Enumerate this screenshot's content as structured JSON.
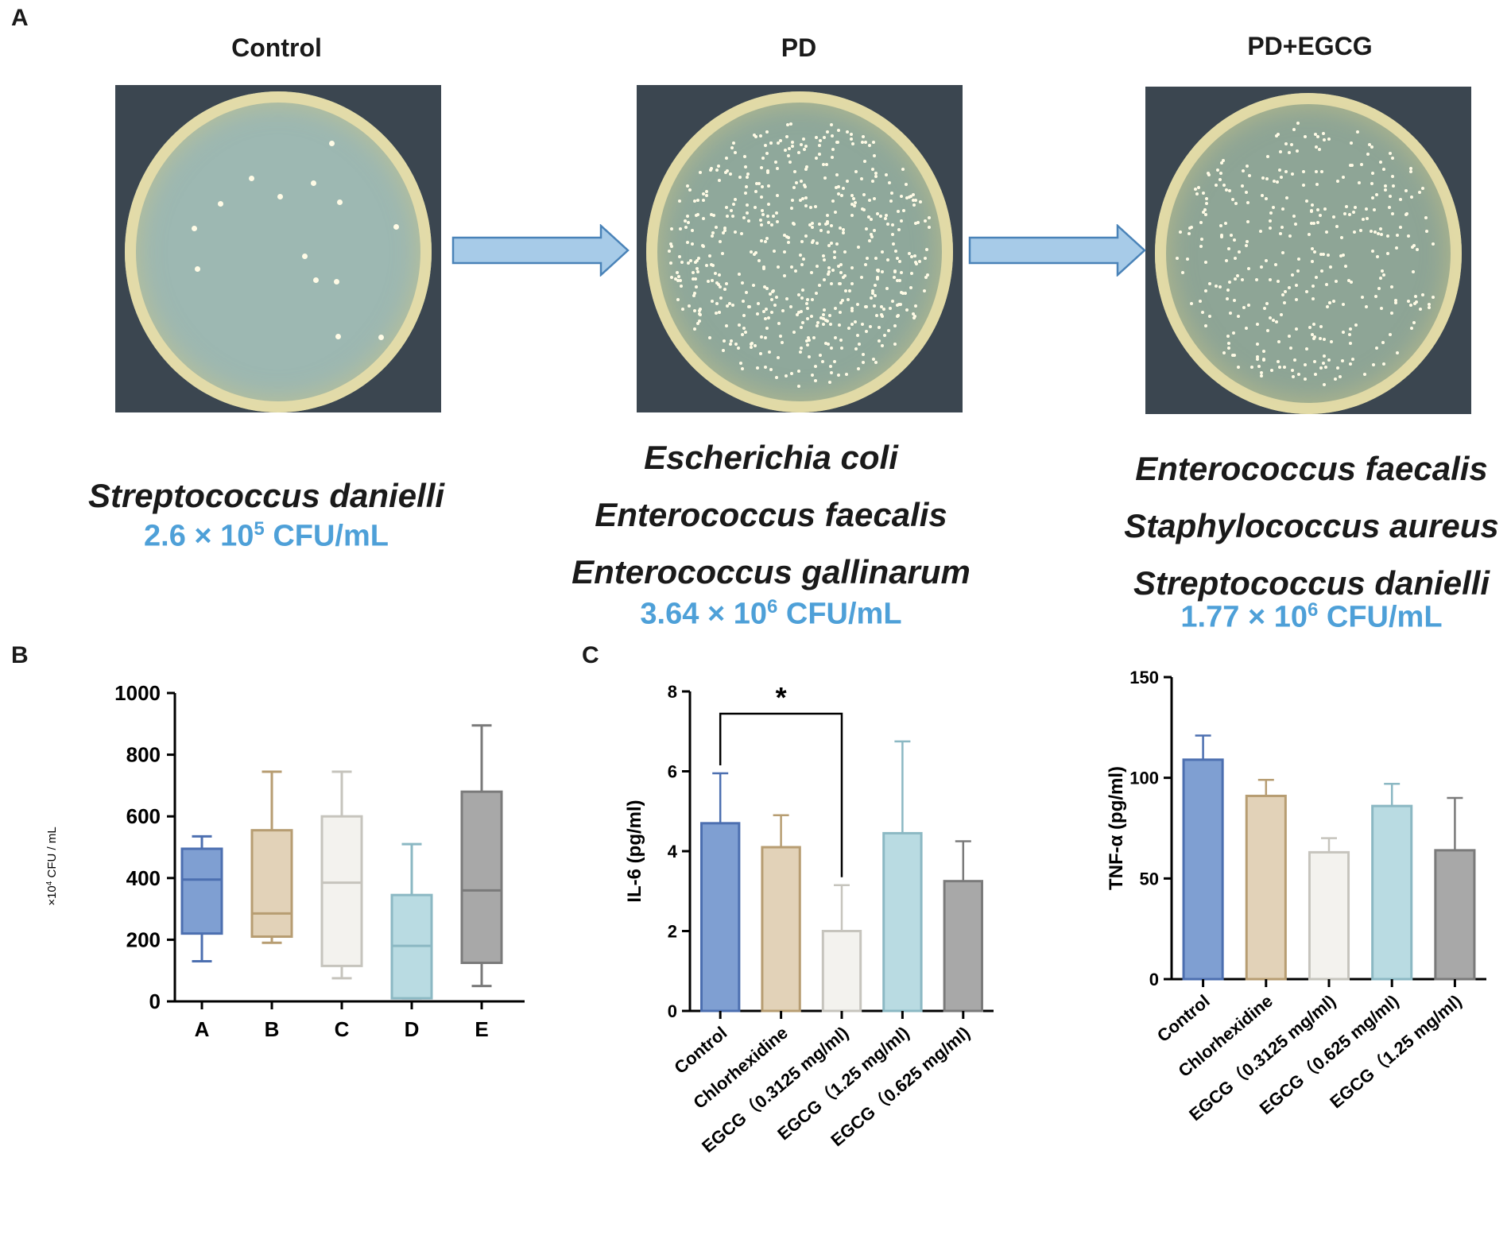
{
  "panels": {
    "a": "A",
    "b": "B",
    "c": "C"
  },
  "groups": [
    {
      "title": "Control",
      "species": [
        "Streptococcus danielli"
      ],
      "cfu": {
        "mantissa": "2.6",
        "times": "× 10",
        "exp": "5",
        "unit": " CFU/mL"
      },
      "plate_color": "#9db8b2",
      "colony_count": 14
    },
    {
      "title": "PD",
      "species": [
        "Escherichia coli",
        "Enterococcus faecalis",
        "Enterococcus gallinarum"
      ],
      "cfu": {
        "mantissa": "3.64",
        "times": "× 10",
        "exp": "6",
        "unit": " CFU/mL"
      },
      "plate_color": "#8fa89b",
      "colony_count": 560
    },
    {
      "title": "PD+EGCG",
      "species": [
        "Enterococcus faecalis",
        "Staphylococcus aureus",
        "Streptococcus danielli"
      ],
      "cfu": {
        "mantissa": "1.77",
        "times": "× 10",
        "exp": "6",
        "unit": " CFU/mL"
      },
      "plate_color": "#8ea596",
      "colony_count": 340
    }
  ],
  "arrow_color": "#a7cbe8",
  "chart_data": [
    {
      "type": "box",
      "panel": "B",
      "ylabel_prefix": "×10",
      "ylabel_exp": "4",
      "ylabel_suffix": " CFU / mL",
      "ylim": [
        0,
        1000
      ],
      "yticks": [
        0,
        200,
        400,
        600,
        800,
        1000
      ],
      "categories": [
        "A",
        "B",
        "C",
        "D",
        "E"
      ],
      "boxes": [
        {
          "min": 130,
          "q1": 220,
          "median": 395,
          "q3": 495,
          "max": 535,
          "color": "#7f9fd2",
          "edge": "#4c6fb0"
        },
        {
          "min": 190,
          "q1": 210,
          "median": 285,
          "q3": 555,
          "max": 745,
          "color": "#e2d2b8",
          "edge": "#b79d72"
        },
        {
          "min": 75,
          "q1": 115,
          "median": 385,
          "q3": 600,
          "max": 745,
          "color": "#f3f2ee",
          "edge": "#c6c4bd"
        },
        {
          "min": 10,
          "q1": 10,
          "median": 180,
          "q3": 345,
          "max": 510,
          "color": "#b9dbe2",
          "edge": "#8bb8c3"
        },
        {
          "min": 50,
          "q1": 125,
          "median": 360,
          "q3": 680,
          "max": 895,
          "color": "#a8a8a8",
          "edge": "#7a7a7a"
        }
      ]
    },
    {
      "type": "bar",
      "panel": "C",
      "ylabel": "IL-6 (pg/ml)",
      "ylim": [
        0,
        8
      ],
      "yticks": [
        0,
        2,
        4,
        6,
        8
      ],
      "categories": [
        "Control",
        "Chlorhexidine",
        "EGCG（0.3125 mg/ml)",
        "EGCG（1.25 mg/ml)",
        "EGCG（0.625 mg/ml)"
      ],
      "values": [
        4.7,
        4.1,
        2.0,
        4.45,
        3.25
      ],
      "errors": [
        1.25,
        0.8,
        1.15,
        2.3,
        1.0
      ],
      "significance": {
        "from": 0,
        "to": 2,
        "label": "*"
      }
    },
    {
      "type": "bar",
      "panel": "C",
      "ylabel": "TNF-α (pg/ml)",
      "ylim": [
        0,
        150
      ],
      "yticks": [
        0,
        50,
        100,
        150
      ],
      "categories": [
        "Control",
        "Chlorhexidine",
        "EGCG（0.3125 mg/ml)",
        "EGCG（0.625 mg/ml)",
        "EGCG（1.25 mg/ml)"
      ],
      "values": [
        109,
        91,
        63,
        86,
        64
      ],
      "errors": [
        12,
        8,
        7,
        11,
        26
      ]
    }
  ],
  "bar_colors": {
    "fills": [
      "#7f9fd2",
      "#e2d2b8",
      "#f3f2ee",
      "#b9dbe2",
      "#a8a8a8"
    ],
    "edges": [
      "#4c6fb0",
      "#b79d72",
      "#c6c4bd",
      "#8bb8c3",
      "#7a7a7a"
    ]
  }
}
